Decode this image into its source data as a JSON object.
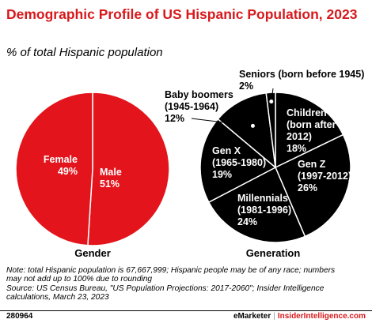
{
  "header": {
    "title": "Demographic Profile of US Hispanic Population, 2023",
    "subtitle": "% of total Hispanic population"
  },
  "chart_data": [
    {
      "type": "pie",
      "title": "Gender",
      "colors": [
        "#e3141c",
        "#e3141c"
      ],
      "slices": [
        {
          "label": "Male",
          "value": 51,
          "text": "51%"
        },
        {
          "label": "Female",
          "value": 49,
          "text": "49%"
        }
      ]
    },
    {
      "type": "pie",
      "title": "Generation",
      "colors": [
        "#000000"
      ],
      "slices": [
        {
          "label": "Children (born after 2012)",
          "lines": [
            "Children",
            "(born after",
            "2012)"
          ],
          "value": 18,
          "text": "18%"
        },
        {
          "label": "Gen Z (1997-2012)",
          "lines": [
            "Gen Z",
            "(1997-2012)"
          ],
          "value": 26,
          "text": "26%"
        },
        {
          "label": "Millennials (1981-1996)",
          "lines": [
            "Millennials",
            "(1981-1996)"
          ],
          "value": 24,
          "text": "24%"
        },
        {
          "label": "Gen X (1965-1980)",
          "lines": [
            "Gen X",
            "(1965-1980)"
          ],
          "value": 19,
          "text": "19%"
        },
        {
          "label": "Baby boomers (1945-1964)",
          "lines": [
            "Baby boomers",
            "(1945-1964)"
          ],
          "value": 12,
          "text": "12%"
        },
        {
          "label": "Seniors (born before 1945)",
          "lines": [
            "Seniors (born before 1945)"
          ],
          "value": 2,
          "text": "2%"
        }
      ]
    }
  ],
  "notes": {
    "line1": "Note: total Hispanic population is 67,667,999; Hispanic people may be of any race; numbers",
    "line2": "may not add up to 100% due to rounding",
    "line3": "Source: US Census Bureau, \"US Population Projections: 2017-2060\"; Insider Intelligence",
    "line4": "calculations, March 23, 2023"
  },
  "footer": {
    "id": "280964",
    "brand_left": "eMarketer",
    "separator": "|",
    "brand_right": "InsiderIntelligence.com"
  }
}
